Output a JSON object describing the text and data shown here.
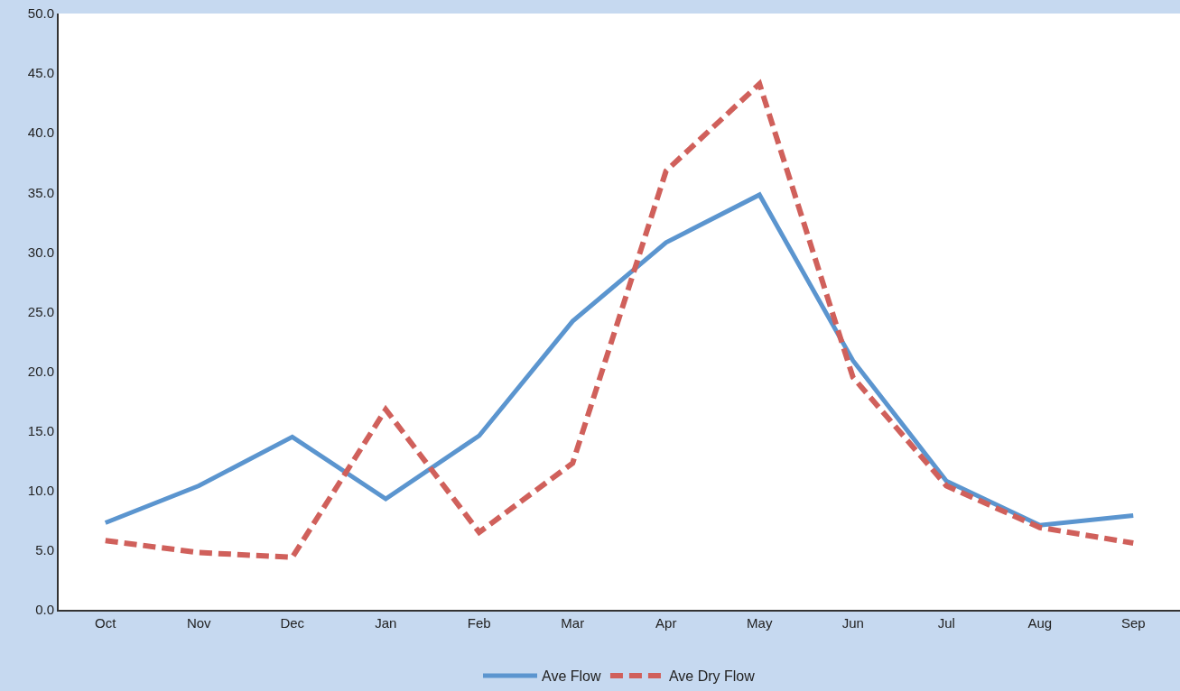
{
  "chart_data": {
    "type": "line",
    "categories": [
      "Oct",
      "Nov",
      "Dec",
      "Jan",
      "Feb",
      "Mar",
      "Apr",
      "May",
      "Jun",
      "Jul",
      "Aug",
      "Sep"
    ],
    "series": [
      {
        "name": "Ave Flow",
        "color": "#5b95cf",
        "line_style": "solid",
        "values": [
          7.3,
          10.4,
          14.5,
          9.3,
          14.6,
          24.2,
          30.8,
          34.8,
          20.9,
          10.8,
          7.1,
          7.9
        ]
      },
      {
        "name": "Ave Dry Flow",
        "color": "#d0605b",
        "line_style": "dashed",
        "values": [
          5.8,
          4.8,
          4.4,
          16.8,
          6.5,
          12.3,
          36.8,
          44.1,
          19.5,
          10.4,
          6.9,
          5.6
        ]
      }
    ],
    "ylim": [
      0,
      50
    ],
    "yticks": [
      {
        "value": 0,
        "label": "0.0"
      },
      {
        "value": 5,
        "label": "5.0"
      },
      {
        "value": 10,
        "label": "10.0"
      },
      {
        "value": 15,
        "label": "15.0"
      },
      {
        "value": 20,
        "label": "20.0"
      },
      {
        "value": 25,
        "label": "25.0"
      },
      {
        "value": 30,
        "label": "30.0"
      },
      {
        "value": 35,
        "label": "35.0"
      },
      {
        "value": 40,
        "label": "40.0"
      },
      {
        "value": 45,
        "label": "45.0"
      },
      {
        "value": 50,
        "label": "50.0"
      }
    ],
    "grid": false,
    "legend": "bottom",
    "marker": "none"
  }
}
